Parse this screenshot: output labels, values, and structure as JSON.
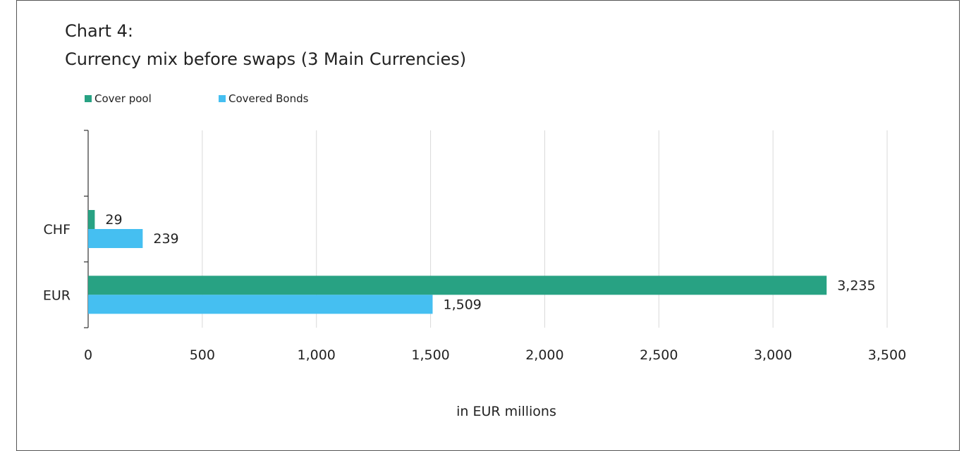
{
  "title_prefix": "Chart 4:",
  "title": "Currency mix before swaps (3 Main Currencies)",
  "chart_data": {
    "type": "bar",
    "orientation": "horizontal",
    "categories": [
      "EUR",
      "CHF",
      ""
    ],
    "series": [
      {
        "name": "Cover pool",
        "color": "#28a283",
        "values": [
          3235,
          29,
          null
        ],
        "labels": [
          "3,235",
          "29",
          ""
        ]
      },
      {
        "name": "Covered Bonds",
        "color": "#45bff1",
        "values": [
          1509,
          239,
          null
        ],
        "labels": [
          "1,509",
          "239",
          ""
        ]
      }
    ],
    "xlabel": "in EUR millions",
    "xlim": [
      0,
      3500
    ],
    "xticks": [
      0,
      500,
      1000,
      1500,
      2000,
      2500,
      3000,
      3500
    ],
    "xtick_labels": [
      "0",
      "500",
      "1,000",
      "1,500",
      "2,000",
      "2,500",
      "3,000",
      "3,500"
    ],
    "grid": "vertical",
    "legend": "top-left"
  }
}
